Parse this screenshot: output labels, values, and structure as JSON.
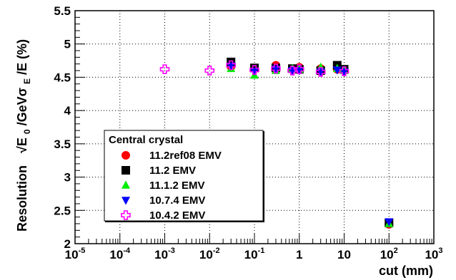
{
  "chart_data": {
    "type": "scatter",
    "xlabel": "cut (mm)",
    "ylabel_prefix": "Resolution",
    "ylabel_main": "√E",
    "ylabel_sub0": "0",
    "ylabel_mid": "/GeVσ",
    "ylabel_subE": "E",
    "ylabel_end": "/E (%)",
    "xscale": "log",
    "xlim": [
      1e-05,
      1000
    ],
    "ylim": [
      2,
      5.5
    ],
    "grid": true,
    "x_ticks": [
      {
        "value": 1e-05,
        "base": "10",
        "exp": "-5"
      },
      {
        "value": 0.0001,
        "base": "10",
        "exp": "-4"
      },
      {
        "value": 0.001,
        "base": "10",
        "exp": "-3"
      },
      {
        "value": 0.01,
        "base": "10",
        "exp": "-2"
      },
      {
        "value": 0.1,
        "base": "10",
        "exp": "-1"
      },
      {
        "value": 1,
        "base": "1",
        "exp": ""
      },
      {
        "value": 10,
        "base": "10",
        "exp": ""
      },
      {
        "value": 100,
        "base": "10",
        "exp": "2"
      },
      {
        "value": 1000,
        "base": "10",
        "exp": "3"
      }
    ],
    "y_ticks": [
      {
        "value": 2,
        "label": "2"
      },
      {
        "value": 2.5,
        "label": "2.5"
      },
      {
        "value": 3,
        "label": "3"
      },
      {
        "value": 3.5,
        "label": "3.5"
      },
      {
        "value": 4,
        "label": "4"
      },
      {
        "value": 4.5,
        "label": "4.5"
      },
      {
        "value": 5,
        "label": "5"
      },
      {
        "value": 5.5,
        "label": "5.5"
      }
    ],
    "legend_title": "Central crystal",
    "legend_position": "bottom-left",
    "series": [
      {
        "name": "11.2ref08 EMV",
        "marker": "circle",
        "color": "#ff0000",
        "x": [
          0.03,
          0.1,
          0.3,
          0.7,
          1,
          3,
          7,
          10,
          100
        ],
        "y": [
          4.66,
          4.63,
          4.68,
          4.62,
          4.65,
          4.63,
          4.62,
          4.6,
          2.29
        ]
      },
      {
        "name": "11.2 EMV",
        "marker": "square",
        "color": "#000000",
        "x": [
          0.03,
          0.1,
          0.3,
          0.7,
          1,
          3,
          7,
          10,
          100
        ],
        "y": [
          4.73,
          4.64,
          4.64,
          4.63,
          4.62,
          4.6,
          4.68,
          4.62,
          2.31
        ]
      },
      {
        "name": "11.1.2 EMV",
        "marker": "triangle-up",
        "color": "#00ee00",
        "x": [
          0.03,
          0.1,
          0.3,
          0.7,
          1,
          3,
          7,
          10,
          100
        ],
        "y": [
          4.63,
          4.53,
          4.6,
          4.63,
          4.62,
          4.65,
          4.63,
          4.6,
          2.3
        ]
      },
      {
        "name": "10.7.4 EMV",
        "marker": "triangle-down",
        "color": "#0000ff",
        "x": [
          0.03,
          0.1,
          0.3,
          0.7,
          1,
          3,
          7,
          10,
          100
        ],
        "y": [
          4.67,
          4.59,
          4.62,
          4.6,
          4.6,
          4.58,
          4.61,
          4.58,
          2.33
        ]
      },
      {
        "name": "10.4.2 EMV",
        "marker": "open-cross",
        "color": "#ff00ff",
        "x": [
          0.001,
          0.01,
          0.03,
          0.1,
          0.3,
          0.7,
          1,
          3,
          10
        ],
        "y": [
          4.62,
          4.6,
          4.68,
          4.61,
          4.63,
          4.6,
          4.62,
          4.58,
          4.59
        ]
      }
    ]
  }
}
